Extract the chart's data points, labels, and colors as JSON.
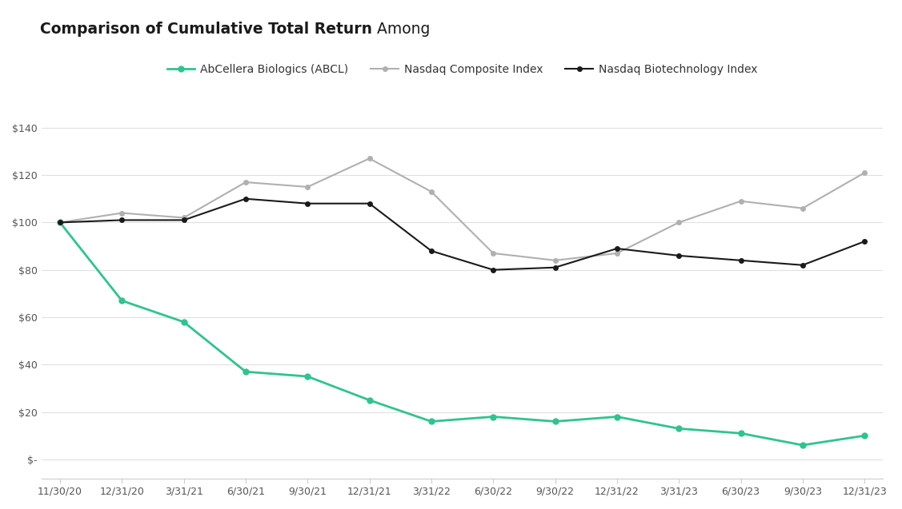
{
  "title_bold": "Comparison of Cumulative Total Return",
  "title_regular": " Among",
  "x_labels": [
    "11/30/20",
    "12/31/20",
    "3/31/21",
    "6/30/21",
    "9/30/21",
    "12/31/21",
    "3/31/22",
    "6/30/22",
    "9/30/22",
    "12/31/22",
    "3/31/23",
    "6/30/23",
    "9/30/23",
    "12/31/23"
  ],
  "abcl": [
    100,
    67,
    58,
    37,
    35,
    25,
    16,
    18,
    16,
    18,
    13,
    11,
    6,
    10
  ],
  "nasdaq": [
    100,
    104,
    102,
    117,
    115,
    127,
    113,
    87,
    84,
    87,
    100,
    109,
    106,
    121
  ],
  "nbi": [
    100,
    101,
    101,
    110,
    108,
    108,
    88,
    80,
    81,
    89,
    86,
    84,
    82,
    92
  ],
  "abcl_color": "#2ec48e",
  "nasdaq_color": "#b0b0b0",
  "nbi_color": "#1a1a1a",
  "background_color": "#ffffff",
  "grid_color": "#e0e0e0",
  "y_ticks": [
    0,
    20,
    40,
    60,
    80,
    100,
    120,
    140
  ],
  "y_labels": [
    "$-",
    "$20",
    "$40",
    "$60",
    "$80",
    "$100",
    "$120",
    "$140"
  ],
  "legend_labels": [
    "AbCellera Biologics (ABCL)",
    "Nasdaq Composite Index",
    "Nasdaq Biotechnology Index"
  ]
}
